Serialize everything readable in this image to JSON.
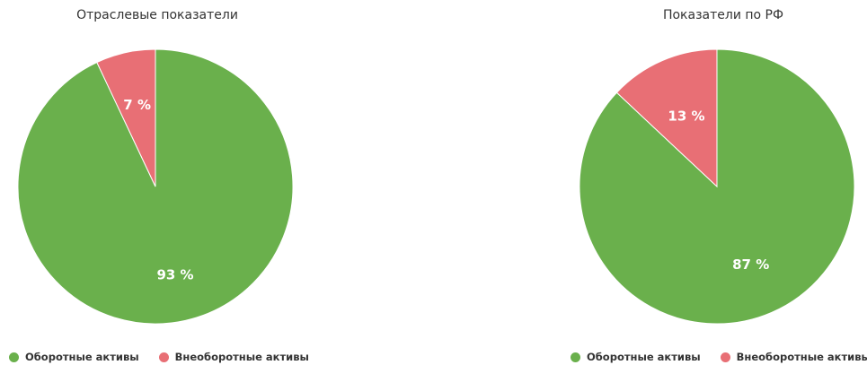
{
  "colors": {
    "current": "#6ab04c",
    "noncurrent": "#e86f75"
  },
  "legend": [
    {
      "label": "Оборотные активы",
      "color": "#6ab04c"
    },
    {
      "label": "Внеоборотные активы",
      "color": "#e86f75"
    }
  ],
  "chart_data": [
    {
      "type": "pie",
      "title": "Отраслевые показатели",
      "slices": [
        {
          "name": "Оборотные активы",
          "value": 93,
          "label": "93 %",
          "color": "#6ab04c"
        },
        {
          "name": "Внеоборотные активы",
          "value": 7,
          "label": "7 %",
          "color": "#e86f75"
        }
      ],
      "legend_position": "bottom-left"
    },
    {
      "type": "pie",
      "title": "Показатели по РФ",
      "slices": [
        {
          "name": "Оборотные активы",
          "value": 87,
          "label": "87 %",
          "color": "#6ab04c"
        },
        {
          "name": "Внеоборотные активы",
          "value": 13,
          "label": "13 %",
          "color": "#e86f75"
        }
      ],
      "legend_position": "bottom-left"
    }
  ]
}
